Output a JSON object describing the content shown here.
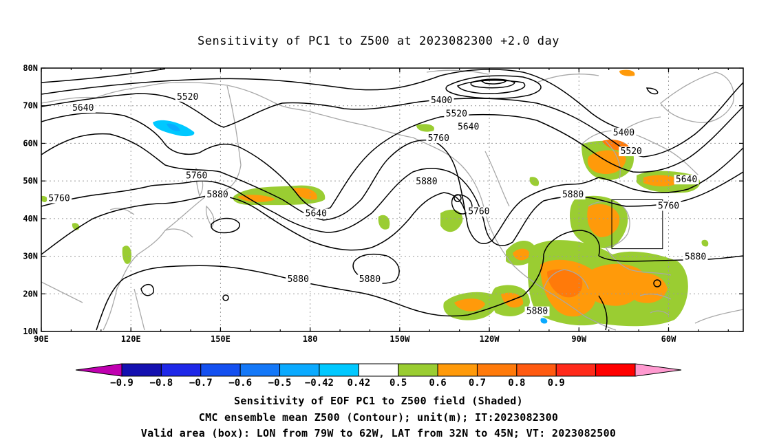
{
  "title": "Sensitivity of PC1 to Z500 at 2023082300 +2.0 day",
  "map": {
    "lon_labels": [
      "90E",
      "120E",
      "150E",
      "180",
      "150W",
      "120W",
      "90W",
      "60W"
    ],
    "lat_labels": [
      "80N",
      "70N",
      "60N",
      "50N",
      "40N",
      "30N",
      "20N",
      "10N"
    ],
    "lon_range": [
      90,
      325
    ],
    "lat_range": [
      10,
      80
    ],
    "valid_box": {
      "lon": [
        281,
        298
      ],
      "lat": [
        32,
        45
      ]
    },
    "colors": {
      "coast": "#a8a8a8",
      "contour": "#000000",
      "grid": "#9a9a9a"
    },
    "contour_labels": [
      {
        "text": "5520",
        "lon": 139,
        "lat": 72
      },
      {
        "text": "5640",
        "lon": 104,
        "lat": 69
      },
      {
        "text": "5400",
        "lon": 224,
        "lat": 71
      },
      {
        "text": "5520",
        "lon": 229,
        "lat": 67.5
      },
      {
        "text": "5640",
        "lon": 233,
        "lat": 64
      },
      {
        "text": "5760",
        "lon": 223,
        "lat": 61
      },
      {
        "text": "5400",
        "lon": 285,
        "lat": 62.5
      },
      {
        "text": "5520",
        "lon": 287.5,
        "lat": 57.5
      },
      {
        "text": "5640",
        "lon": 306,
        "lat": 50
      },
      {
        "text": "5760",
        "lon": 142,
        "lat": 51
      },
      {
        "text": "5880",
        "lon": 149,
        "lat": 46
      },
      {
        "text": "5760",
        "lon": 96,
        "lat": 45
      },
      {
        "text": "5640",
        "lon": 182,
        "lat": 41
      },
      {
        "text": "5880",
        "lon": 219,
        "lat": 49.5
      },
      {
        "text": "5760",
        "lon": 236.5,
        "lat": 41.5
      },
      {
        "text": "5880",
        "lon": 268,
        "lat": 46
      },
      {
        "text": "5760",
        "lon": 300,
        "lat": 43
      },
      {
        "text": "5880",
        "lon": 309,
        "lat": 29.5
      },
      {
        "text": "5880",
        "lon": 176,
        "lat": 23.5
      },
      {
        "text": "5880",
        "lon": 200,
        "lat": 23.5
      },
      {
        "text": "5880",
        "lon": 256,
        "lat": 15
      }
    ]
  },
  "colorbar": {
    "colors": [
      "#c000b0",
      "#1410b0",
      "#1e28e8",
      "#1450f0",
      "#1478f8",
      "#0aaaff",
      "#00c8ff",
      "#ffffff",
      "#9acd32",
      "#ff9a0a",
      "#ff7a0a",
      "#ff5a10",
      "#ff2a1a",
      "#ff0000",
      "#ff9ad0"
    ],
    "labels": [
      "−0.9",
      "−0.8",
      "−0.7",
      "−0.6",
      "−0.5",
      "−0.42",
      "0.42",
      "0.5",
      "0.6",
      "0.7",
      "0.8",
      "0.9"
    ]
  },
  "captions": {
    "line1": "Sensitivity of EOF PC1 to Z500 field (Shaded)",
    "line2": "CMC ensemble mean Z500 (Contour); unit(m); IT:2023082300",
    "line3": "Valid area (box): LON from 79W to 62W, LAT from 32N to 45N; VT: 2023082500"
  }
}
